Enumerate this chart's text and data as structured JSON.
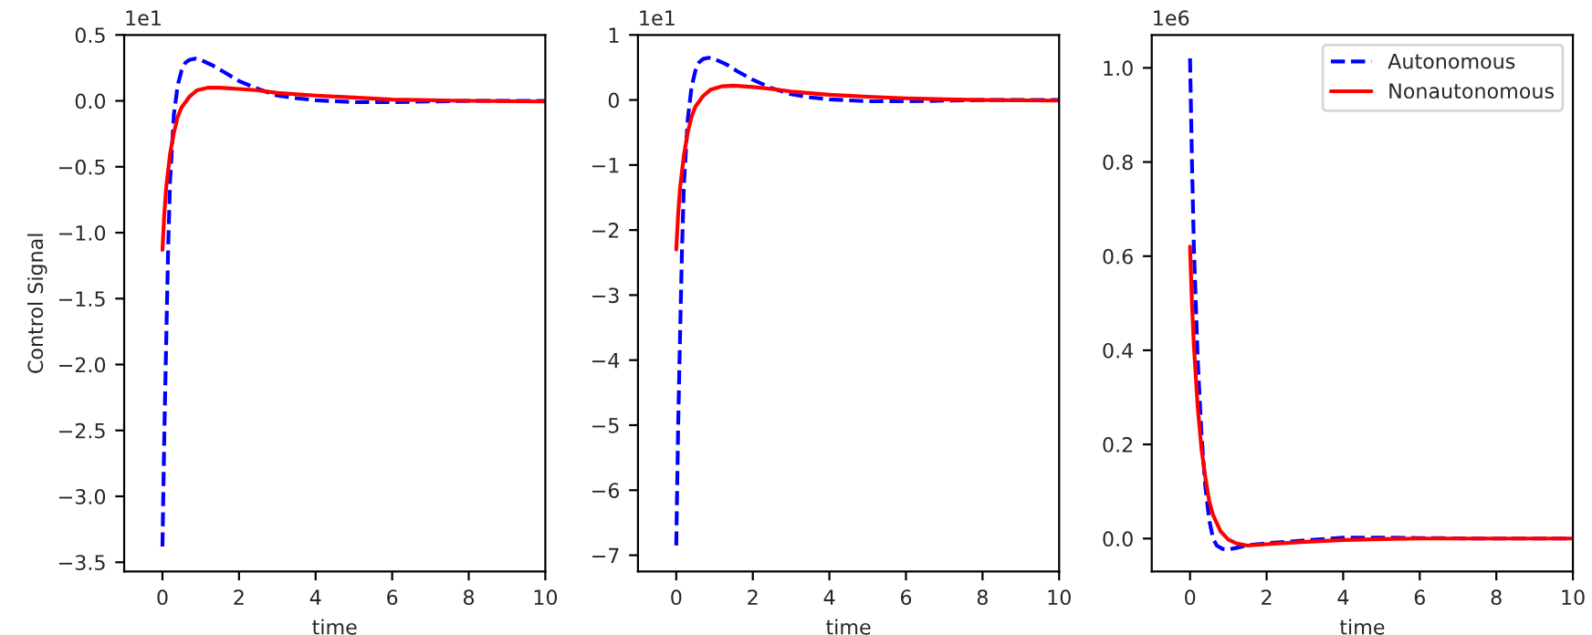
{
  "chart_data": [
    {
      "type": "line",
      "xlabel": "time",
      "ylabel": "Control Signal",
      "annotations": [
        "1e1"
      ],
      "xlim": [
        -1,
        10
      ],
      "xticks": [
        0,
        2,
        4,
        6,
        8,
        10
      ],
      "ylim": [
        -3.57,
        0.5
      ],
      "yticks": [
        {
          "value": -3.5,
          "label": "−3.5"
        },
        {
          "value": -3.0,
          "label": "−3.0"
        },
        {
          "value": -2.5,
          "label": "−2.5"
        },
        {
          "value": -2.0,
          "label": "−2.0"
        },
        {
          "value": -1.5,
          "label": "−1.5"
        },
        {
          "value": -1.0,
          "label": "−1.0"
        },
        {
          "value": -0.5,
          "label": "−0.5"
        },
        {
          "value": 0.0,
          "label": "0.0"
        },
        {
          "value": 0.5,
          "label": "0.5"
        }
      ],
      "grid": false,
      "legend": false,
      "series": [
        {
          "color": "#0000ff",
          "line_style": "dashed",
          "x": [
            0,
            0.05,
            0.1,
            0.15,
            0.2,
            0.3,
            0.4,
            0.5,
            0.6,
            0.7,
            0.85,
            1.0,
            1.3,
            1.6,
            2.0,
            2.5,
            3.0,
            3.5,
            4,
            5,
            6,
            7,
            8,
            10
          ],
          "values": [
            -3.38,
            -2.5,
            -1.8,
            -1.1,
            -0.6,
            -0.1,
            0.12,
            0.23,
            0.29,
            0.31,
            0.32,
            0.31,
            0.27,
            0.22,
            0.15,
            0.09,
            0.04,
            0.02,
            0.005,
            -0.01,
            -0.01,
            -0.005,
            0,
            0
          ]
        },
        {
          "color": "#ff0000",
          "line_style": "solid",
          "x": [
            0,
            0.05,
            0.1,
            0.2,
            0.3,
            0.4,
            0.5,
            0.7,
            0.9,
            1.2,
            1.5,
            2,
            2.5,
            3,
            4,
            5,
            6,
            7,
            8,
            10
          ],
          "values": [
            -1.13,
            -0.85,
            -0.65,
            -0.4,
            -0.24,
            -0.12,
            -0.05,
            0.03,
            0.08,
            0.1,
            0.1,
            0.09,
            0.08,
            0.06,
            0.04,
            0.025,
            0.01,
            0.005,
            0,
            -0.005
          ]
        }
      ]
    },
    {
      "type": "line",
      "xlabel": "time",
      "annotations": [
        "1e1"
      ],
      "xlim": [
        -1,
        10
      ],
      "xticks": [
        0,
        2,
        4,
        6,
        8,
        10
      ],
      "ylim": [
        -7.25,
        1
      ],
      "yticks": [
        {
          "value": -7,
          "label": "−7"
        },
        {
          "value": -6,
          "label": "−6"
        },
        {
          "value": -5,
          "label": "−5"
        },
        {
          "value": -4,
          "label": "−4"
        },
        {
          "value": -3,
          "label": "−3"
        },
        {
          "value": -2,
          "label": "−2"
        },
        {
          "value": -1,
          "label": "−1"
        },
        0,
        1
      ],
      "grid": false,
      "legend": false,
      "series": [
        {
          "color": "#0000ff",
          "line_style": "dashed",
          "x": [
            0,
            0.05,
            0.1,
            0.15,
            0.2,
            0.3,
            0.4,
            0.5,
            0.6,
            0.7,
            0.85,
            1.0,
            1.3,
            1.6,
            2.0,
            2.5,
            3,
            3.5,
            4,
            5,
            6,
            7,
            8,
            10
          ],
          "values": [
            -6.85,
            -5,
            -3.6,
            -2.3,
            -1.3,
            -0.3,
            0.2,
            0.45,
            0.58,
            0.63,
            0.65,
            0.63,
            0.55,
            0.44,
            0.31,
            0.18,
            0.09,
            0.04,
            0.01,
            -0.02,
            -0.02,
            -0.01,
            0,
            0
          ]
        },
        {
          "color": "#ff0000",
          "line_style": "solid",
          "x": [
            0,
            0.05,
            0.1,
            0.2,
            0.3,
            0.4,
            0.5,
            0.7,
            0.9,
            1.2,
            1.5,
            2,
            2.5,
            3,
            4,
            5,
            6,
            7,
            8,
            10
          ],
          "values": [
            -2.3,
            -1.75,
            -1.35,
            -0.85,
            -0.5,
            -0.26,
            -0.1,
            0.06,
            0.16,
            0.21,
            0.22,
            0.2,
            0.17,
            0.13,
            0.08,
            0.05,
            0.025,
            0.01,
            0,
            -0.01
          ]
        }
      ]
    },
    {
      "type": "line",
      "xlabel": "time",
      "annotations": [
        "1e6"
      ],
      "xlim": [
        -1,
        10
      ],
      "xticks": [
        0,
        2,
        4,
        6,
        8,
        10
      ],
      "ylim": [
        -0.07,
        1.07
      ],
      "yticks": [
        {
          "value": 0.0,
          "label": "0.0"
        },
        {
          "value": 0.2,
          "label": "0.2"
        },
        {
          "value": 0.4,
          "label": "0.4"
        },
        {
          "value": 0.6,
          "label": "0.6"
        },
        {
          "value": 0.8,
          "label": "0.8"
        },
        {
          "value": 1.0,
          "label": "1.0"
        }
      ],
      "grid": false,
      "legend": "top right",
      "series": [
        {
          "name": "Autonomous",
          "color": "#0000ff",
          "line_style": "dashed",
          "x": [
            0,
            0.05,
            0.1,
            0.2,
            0.3,
            0.4,
            0.5,
            0.6,
            0.7,
            0.85,
            1.0,
            1.2,
            1.5,
            2,
            3,
            4,
            5,
            6,
            8,
            10
          ],
          "values": [
            1.02,
            0.8,
            0.62,
            0.38,
            0.22,
            0.11,
            0.04,
            0.0,
            -0.015,
            -0.022,
            -0.023,
            -0.02,
            -0.014,
            -0.01,
            -0.004,
            0.002,
            0.002,
            0.001,
            0,
            0
          ]
        },
        {
          "name": "Nonautonomous",
          "color": "#ff0000",
          "line_style": "solid",
          "x": [
            0,
            0.05,
            0.1,
            0.2,
            0.3,
            0.4,
            0.5,
            0.6,
            0.8,
            1.0,
            1.2,
            1.5,
            2,
            3,
            4,
            5,
            6,
            10
          ],
          "values": [
            0.62,
            0.5,
            0.41,
            0.28,
            0.19,
            0.13,
            0.08,
            0.05,
            0.015,
            -0.002,
            -0.01,
            -0.015,
            -0.012,
            -0.007,
            -0.003,
            -0.001,
            0,
            0
          ]
        }
      ]
    }
  ]
}
